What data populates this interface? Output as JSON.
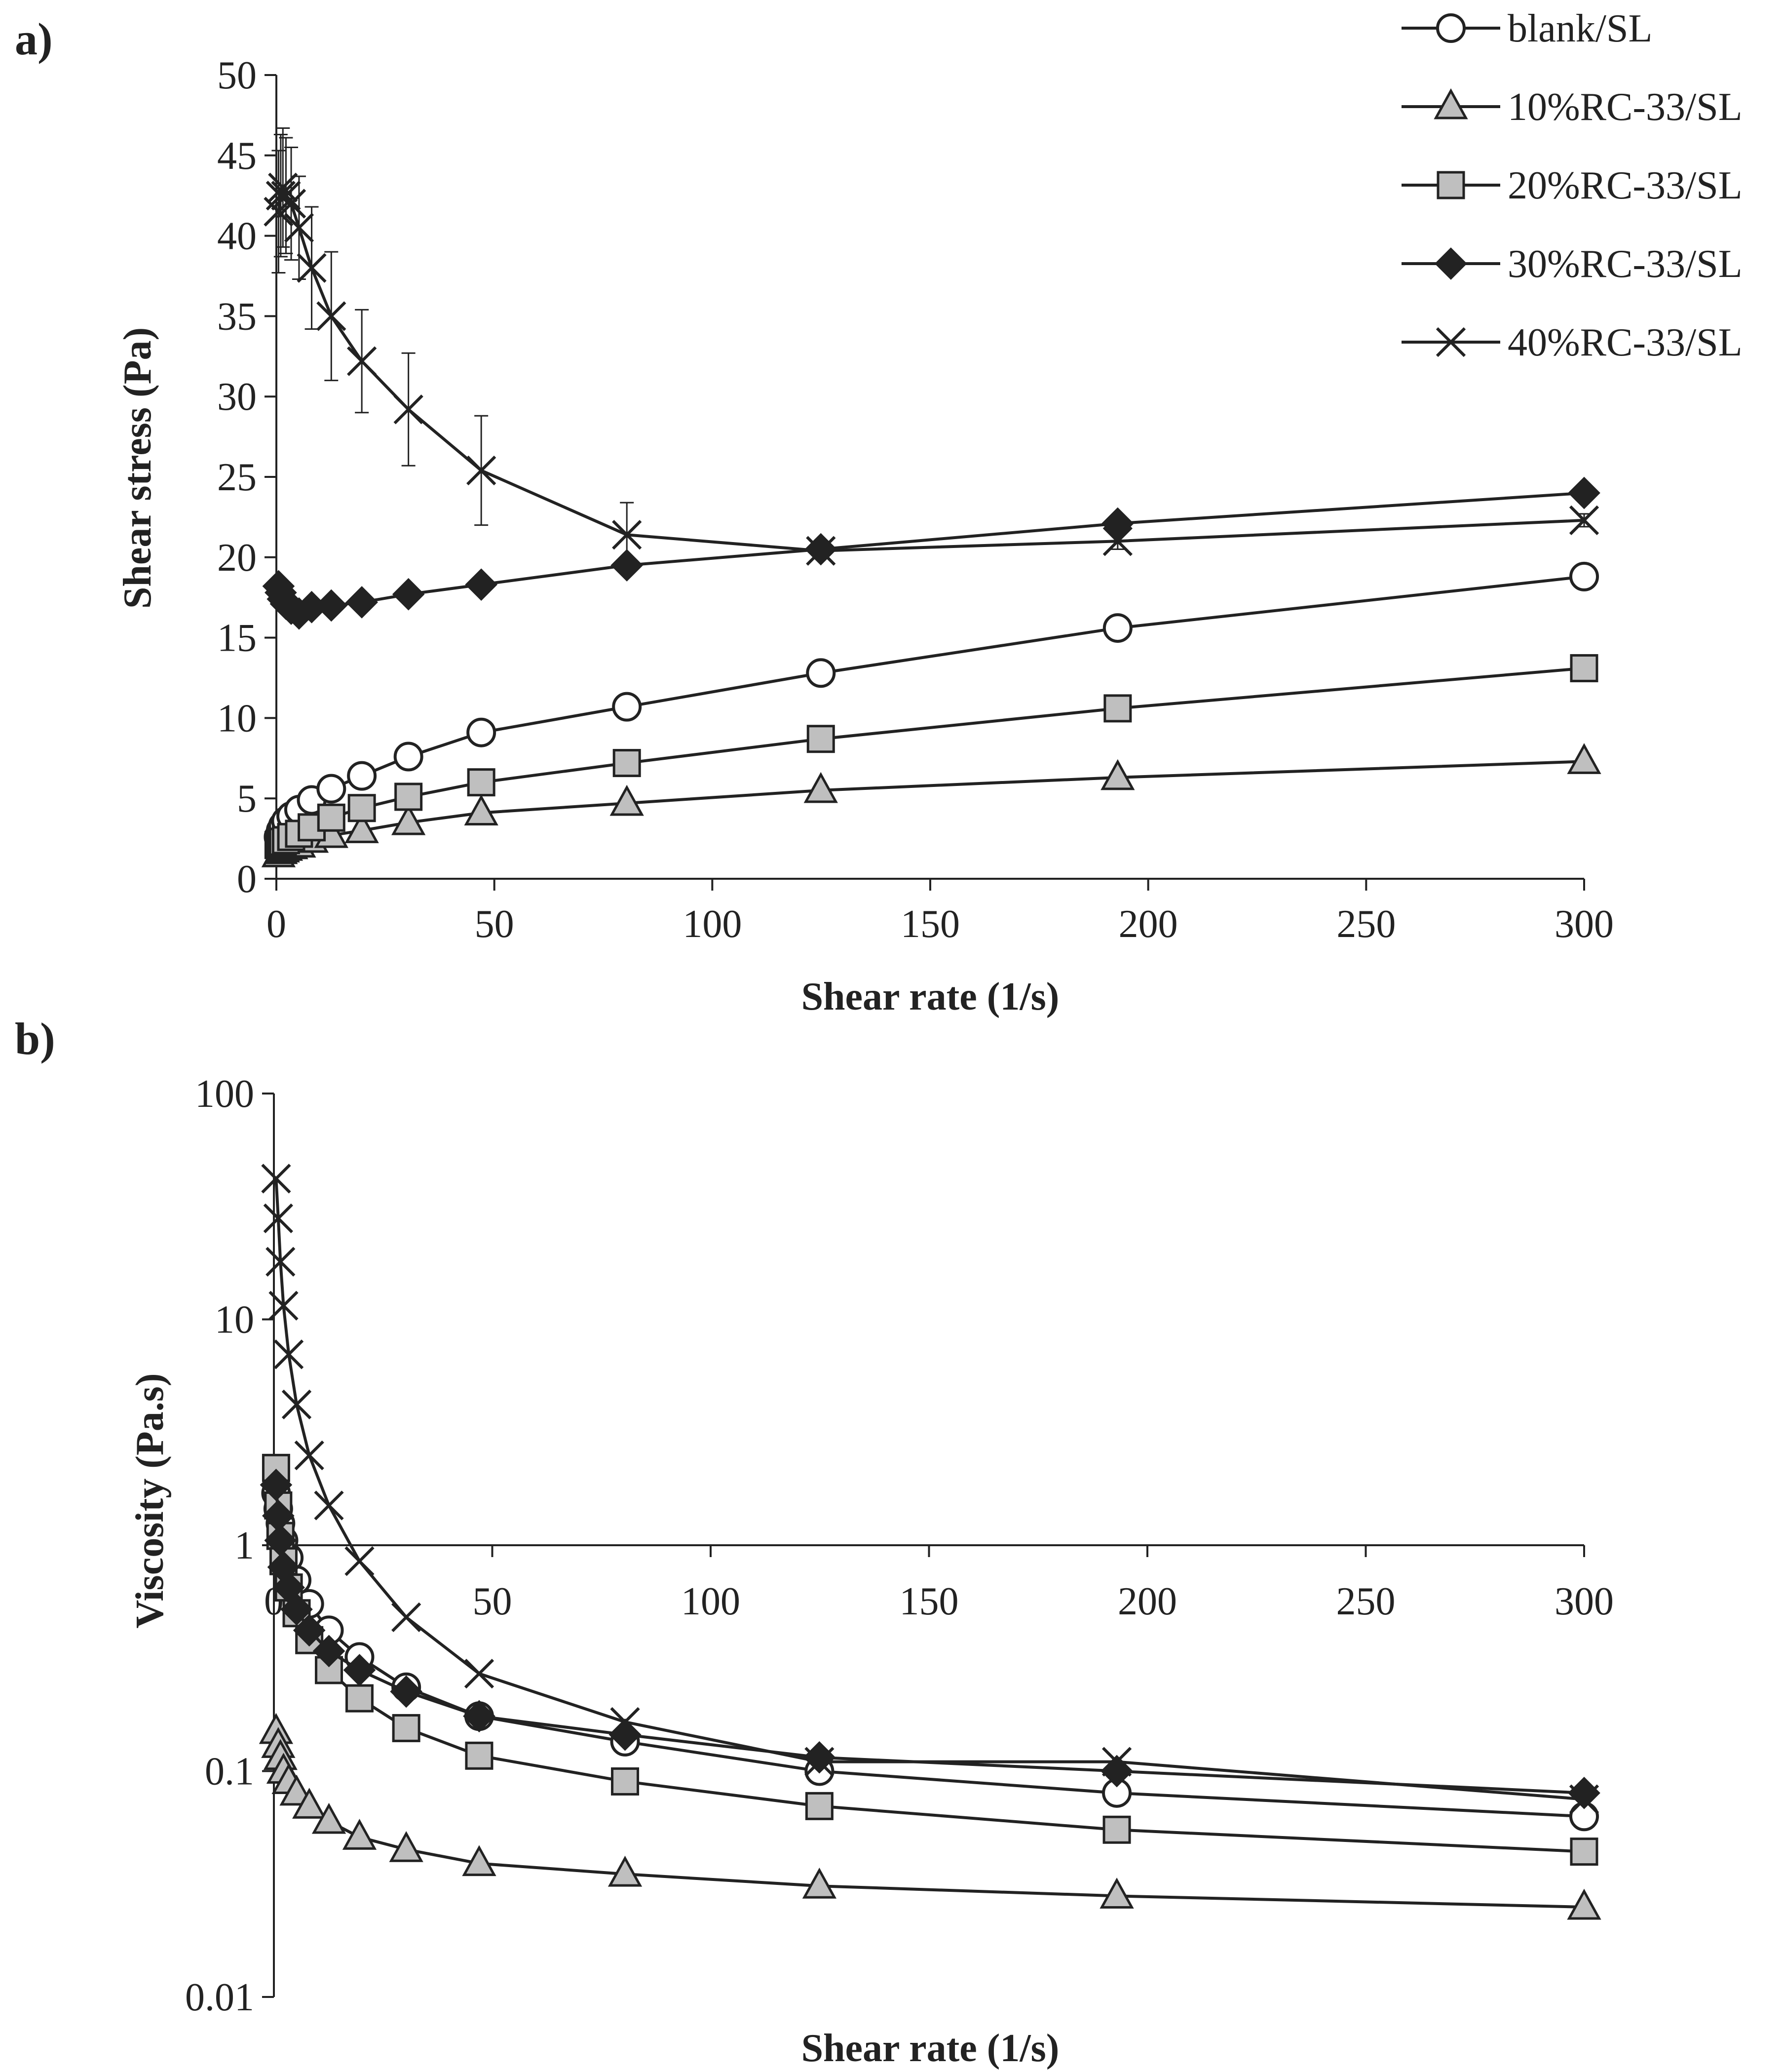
{
  "colors": {
    "ink": "#222222",
    "gray_fill": "#bfbfbf",
    "white": "#ffffff"
  },
  "chart_data": [
    {
      "panel_label": "a)",
      "type": "line",
      "xlabel": "Shear rate (1/s)",
      "ylabel": "Shear stress (Pa)",
      "xlim": [
        0,
        300
      ],
      "ylim": [
        0,
        50
      ],
      "x_ticks": [
        "0",
        "50",
        "100",
        "150",
        "200",
        "250",
        "300"
      ],
      "y_ticks": [
        "0",
        "5",
        "10",
        "15",
        "20",
        "25",
        "30",
        "35",
        "40",
        "45",
        "50"
      ],
      "grid": false,
      "legend_position": "top-right",
      "series": [
        {
          "name": "blank/SL",
          "marker": "circle-open",
          "x": [
            0.5,
            1,
            1.5,
            2.2,
            3.4,
            5.2,
            8.1,
            12.6,
            19.6,
            30.3,
            47,
            80.4,
            124.9,
            193,
            300
          ],
          "y": [
            2.6,
            3,
            3.3,
            3.6,
            3.9,
            4.3,
            4.9,
            5.6,
            6.4,
            7.6,
            9.1,
            10.7,
            12.8,
            15.6,
            18.8
          ]
        },
        {
          "name": "10%RC-33/SL",
          "marker": "triangle-gray",
          "x": [
            0.5,
            1,
            1.5,
            2.2,
            3.4,
            5.2,
            8.1,
            12.6,
            19.6,
            30.3,
            47,
            80.4,
            124.9,
            193,
            300
          ],
          "y": [
            1.5,
            1.7,
            1.8,
            1.9,
            2,
            2.1,
            2.4,
            2.7,
            3,
            3.5,
            4.1,
            4.7,
            5.5,
            6.3,
            7.3
          ]
        },
        {
          "name": "20%RC-33/SL",
          "marker": "square-gray",
          "x": [
            0.5,
            1,
            1.5,
            2.2,
            3.4,
            5.2,
            8.1,
            12.6,
            19.6,
            30.3,
            47,
            80.4,
            124.9,
            193,
            300
          ],
          "y": [
            2.1,
            2.2,
            2.3,
            2.4,
            2.6,
            2.8,
            3.2,
            3.8,
            4.4,
            5.1,
            6,
            7.2,
            8.7,
            10.6,
            13.1
          ]
        },
        {
          "name": "30%RC-33/SL",
          "marker": "diamond-black",
          "x": [
            0.5,
            1,
            1.5,
            2.2,
            3.4,
            5.2,
            8.1,
            12.6,
            19.6,
            30.3,
            47,
            80.4,
            124.9,
            193,
            300
          ],
          "y": [
            18.2,
            17.8,
            17.4,
            17.1,
            16.8,
            16.5,
            16.9,
            17,
            17.2,
            17.7,
            18.3,
            19.5,
            20.5,
            22.1,
            24
          ]
        },
        {
          "name": "40%RC-33/SL",
          "marker": "cross",
          "x": [
            0.5,
            1,
            1.5,
            2.2,
            3.4,
            5.2,
            8.1,
            12.6,
            19.6,
            30.3,
            47,
            80.4,
            124.9,
            193,
            300
          ],
          "y": [
            41.5,
            42.5,
            43,
            42.5,
            42,
            40.5,
            38,
            35,
            32.2,
            29.2,
            25.4,
            21.4,
            20.4,
            21,
            22.3
          ],
          "error": [
            3.8,
            3.8,
            3.7,
            3.6,
            3.5,
            3.2,
            3.8,
            4,
            3.2,
            3.5,
            3.4,
            2,
            0.3,
            0.5,
            0.4
          ]
        }
      ]
    },
    {
      "panel_label": "b)",
      "type": "line",
      "xlabel": "Shear rate (1/s)",
      "ylabel": "Viscosity (Pa.s)",
      "xlim": [
        0,
        300
      ],
      "ylim": [
        0.01,
        100
      ],
      "y_scale": "log",
      "x_axis_at_y": 1,
      "x_ticks": [
        "0",
        "50",
        "100",
        "150",
        "200",
        "250",
        "300"
      ],
      "y_ticks": [
        "0.01",
        "0.1",
        "1",
        "10",
        "100"
      ],
      "y_tick_values": [
        0.01,
        0.1,
        1,
        10,
        100
      ],
      "grid": false,
      "series": [
        {
          "name": "blank/SL",
          "marker": "circle-open",
          "x": [
            0.5,
            1,
            1.5,
            2.2,
            3.4,
            5.2,
            8.1,
            12.6,
            19.6,
            30.3,
            47,
            80.4,
            124.9,
            193,
            300
          ],
          "y": [
            1.7,
            1.45,
            1.25,
            1.05,
            0.88,
            0.7,
            0.55,
            0.42,
            0.32,
            0.235,
            0.175,
            0.135,
            0.1,
            0.08,
            0.063
          ]
        },
        {
          "name": "10%RC-33/SL",
          "marker": "triangle-gray",
          "x": [
            0.5,
            1,
            1.5,
            2.2,
            3.4,
            5.2,
            8.1,
            12.6,
            19.6,
            30.3,
            47,
            80.4,
            124.9,
            193,
            300
          ],
          "y": [
            0.15,
            0.13,
            0.115,
            0.1,
            0.09,
            0.08,
            0.07,
            0.06,
            0.051,
            0.045,
            0.039,
            0.035,
            0.031,
            0.028,
            0.025
          ]
        },
        {
          "name": "20%RC-33/SL",
          "marker": "square-gray",
          "x": [
            0.5,
            1,
            1.5,
            2.2,
            3.4,
            5.2,
            8.1,
            12.6,
            19.6,
            30.3,
            47,
            80.4,
            124.9,
            193,
            300
          ],
          "y": [
            2.2,
            1.5,
            1.1,
            0.85,
            0.65,
            0.5,
            0.38,
            0.28,
            0.21,
            0.155,
            0.117,
            0.09,
            0.07,
            0.055,
            0.044
          ]
        },
        {
          "name": "30%RC-33/SL",
          "marker": "diamond-black",
          "x": [
            0.5,
            1,
            1.5,
            2.2,
            3.4,
            5.2,
            8.1,
            12.6,
            19.6,
            30.3,
            47,
            80.4,
            124.9,
            193,
            300
          ],
          "y": [
            1.85,
            1.35,
            1.05,
            0.8,
            0.65,
            0.52,
            0.42,
            0.34,
            0.28,
            0.225,
            0.175,
            0.145,
            0.115,
            0.1,
            0.08
          ]
        },
        {
          "name": "40%RC-33/SL",
          "marker": "cross",
          "x": [
            0.5,
            1,
            1.5,
            2.2,
            3.4,
            5.2,
            8.1,
            12.6,
            19.6,
            30.3,
            47,
            80.4,
            124.9,
            193,
            300
          ],
          "y": [
            42,
            28,
            18,
            11.5,
            7,
            4.2,
            2.5,
            1.5,
            0.85,
            0.48,
            0.27,
            0.165,
            0.11,
            0.11,
            0.075
          ]
        }
      ]
    }
  ]
}
